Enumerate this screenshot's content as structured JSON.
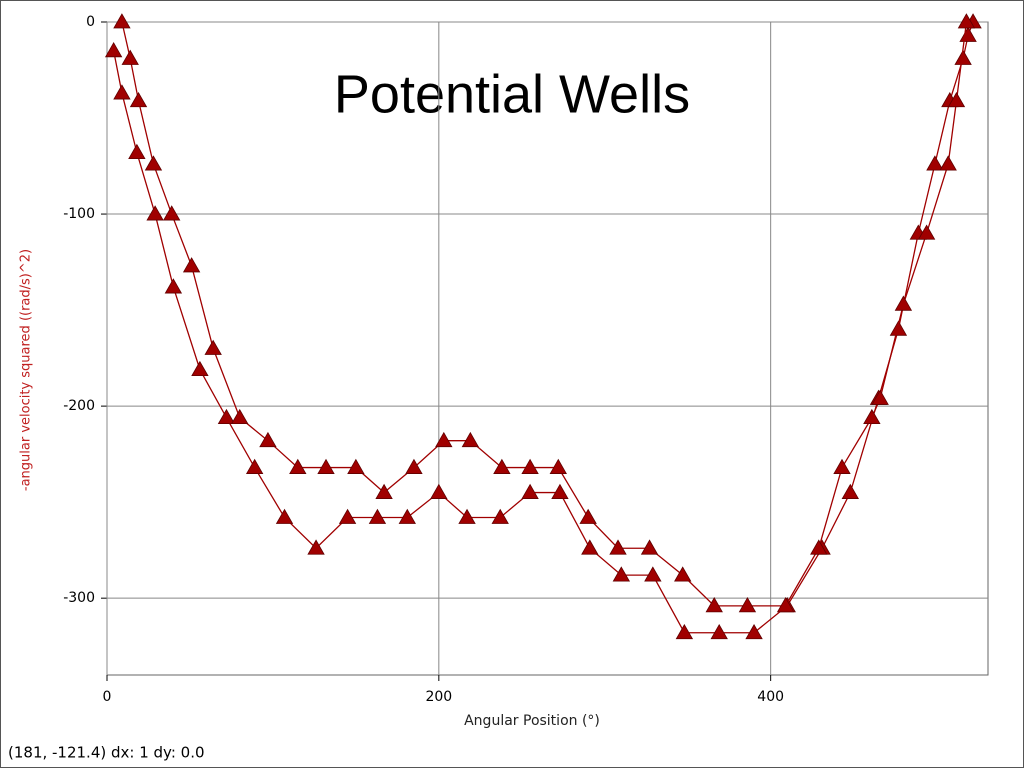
{
  "chart_data": {
    "type": "line",
    "title": "Potential Wells",
    "x_label": "Angular Position (°)",
    "y_label": "-angular velocity squared ((rad/s)^2)",
    "status": "(181, -121.4) dx: 1 dy: 0.0",
    "xlim": [
      0,
      531
    ],
    "ylim": [
      -340,
      0
    ],
    "xticks": [
      0,
      200,
      400
    ],
    "yticks": [
      -300,
      -200,
      -100,
      0
    ],
    "grid": true,
    "series": [
      {
        "color": "#a00000",
        "x": [
          4,
          9,
          18,
          29,
          40,
          56,
          72,
          89,
          107,
          126,
          145,
          163,
          181,
          200,
          217,
          237,
          255,
          273,
          291,
          310,
          329,
          348,
          369,
          390,
          410,
          431,
          448,
          465,
          477,
          489,
          499,
          508,
          516,
          519,
          522
        ],
        "values": [
          -15,
          -37,
          -68,
          -100,
          -138,
          -181,
          -206,
          -232,
          -258,
          -274,
          -258,
          -258,
          -258,
          -245,
          -258,
          -258,
          -245,
          -245,
          -274,
          -288,
          -288,
          -318,
          -318,
          -318,
          -304,
          -274,
          -245,
          -196,
          -160,
          -110,
          -74,
          -41,
          -19,
          -7,
          0
        ]
      },
      {
        "color": "#a00000",
        "x": [
          9,
          14,
          19,
          28,
          39,
          51,
          64,
          80,
          97,
          115,
          132,
          150,
          167,
          185,
          203,
          219,
          238,
          255,
          272,
          290,
          308,
          327,
          347,
          366,
          386,
          409,
          429,
          443,
          461,
          466,
          480,
          494,
          507,
          512,
          518
        ],
        "values": [
          0,
          -19,
          -41,
          -74,
          -100,
          -127,
          -170,
          -206,
          -218,
          -232,
          -232,
          -232,
          -245,
          -232,
          -218,
          -218,
          -232,
          -232,
          -232,
          -258,
          -274,
          -274,
          -288,
          -304,
          -304,
          -304,
          -274,
          -232,
          -206,
          -196,
          -147,
          -110,
          -74,
          -41,
          0
        ]
      }
    ]
  }
}
